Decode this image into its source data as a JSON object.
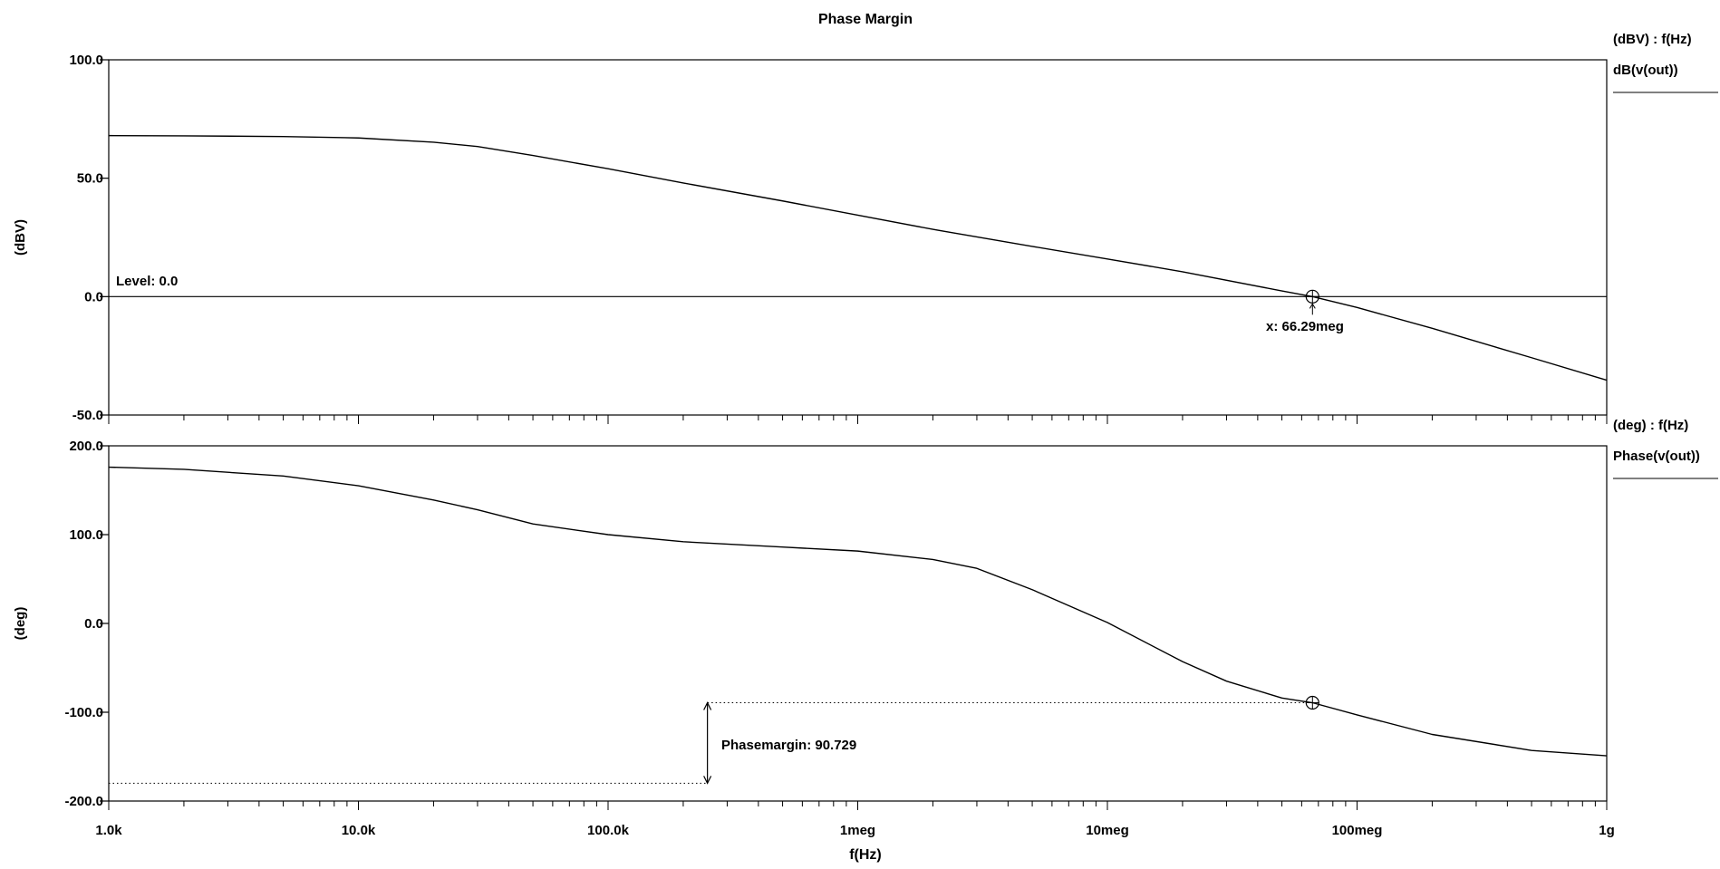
{
  "title": "Phase Margin",
  "xlabel": "f(Hz)",
  "x_ticks": [
    {
      "value": 1000,
      "label": "1.0k"
    },
    {
      "value": 10000,
      "label": "10.0k"
    },
    {
      "value": 100000,
      "label": "100.0k"
    },
    {
      "value": 1000000,
      "label": "1meg"
    },
    {
      "value": 10000000,
      "label": "10meg"
    },
    {
      "value": 100000000,
      "label": "100meg"
    },
    {
      "value": 1000000000,
      "label": "1g"
    }
  ],
  "chart_data": [
    {
      "type": "line",
      "title": "Phase Margin",
      "xscale": "log",
      "xlim": [
        1000,
        1000000000
      ],
      "ylim": [
        -50,
        100
      ],
      "ylabel": "(dBV)",
      "y_ticks": [
        {
          "value": 100,
          "label": "100.0"
        },
        {
          "value": 50,
          "label": "50.0"
        },
        {
          "value": 0,
          "label": "0.0"
        },
        {
          "value": -50,
          "label": "-50.0"
        }
      ],
      "axis_units_label": "(dBV) : f(Hz)",
      "series": [
        {
          "name": "dB(v(out))",
          "x": [
            1000,
            2000,
            5000,
            10000,
            20000,
            30000,
            50000,
            100000,
            200000,
            500000,
            1000000,
            2000000,
            5000000,
            10000000,
            20000000,
            50000000,
            66290000,
            100000000,
            200000000,
            500000000,
            1000000000
          ],
          "y": [
            68,
            67.9,
            67.6,
            67,
            65.2,
            63.4,
            59.6,
            54,
            48,
            40.4,
            34.4,
            28.4,
            21.2,
            15.9,
            10.5,
            2.4,
            0,
            -4.6,
            -13.4,
            -25.8,
            -35.3
          ]
        }
      ],
      "level_line": {
        "value": 0,
        "label": "Level: 0.0"
      },
      "marker": {
        "x": 66290000,
        "y": 0,
        "label": "x: 66.29meg"
      }
    },
    {
      "type": "line",
      "xscale": "log",
      "xlim": [
        1000,
        1000000000
      ],
      "ylim": [
        -200,
        200
      ],
      "ylabel": "(deg)",
      "y_ticks": [
        {
          "value": 200,
          "label": "200.0"
        },
        {
          "value": 100,
          "label": "100.0"
        },
        {
          "value": 0,
          "label": "0.0"
        },
        {
          "value": -100,
          "label": "-100.0"
        },
        {
          "value": -200,
          "label": "-200.0"
        }
      ],
      "axis_units_label": "(deg) : f(Hz)",
      "series": [
        {
          "name": "Phase(v(out))",
          "x": [
            1000,
            2000,
            5000,
            10000,
            20000,
            30000,
            50000,
            100000,
            200000,
            500000,
            1000000,
            2000000,
            3000000,
            5000000,
            10000000,
            20000000,
            30000000,
            50000000,
            66290000,
            100000000,
            200000000,
            500000000,
            1000000000
          ],
          "y": [
            176,
            173.5,
            166,
            155,
            139,
            128,
            112,
            100,
            92,
            86,
            81.5,
            72,
            62,
            38,
            1,
            -43,
            -65,
            -84,
            -89.3,
            -103,
            -125,
            -143,
            -149
          ]
        }
      ],
      "marker": {
        "x": 66290000,
        "y": -89.3
      },
      "phase_margin": {
        "label": "Phasemargin: 90.729",
        "arrow_x": 250000,
        "from": -180,
        "to": -89.3
      }
    }
  ]
}
